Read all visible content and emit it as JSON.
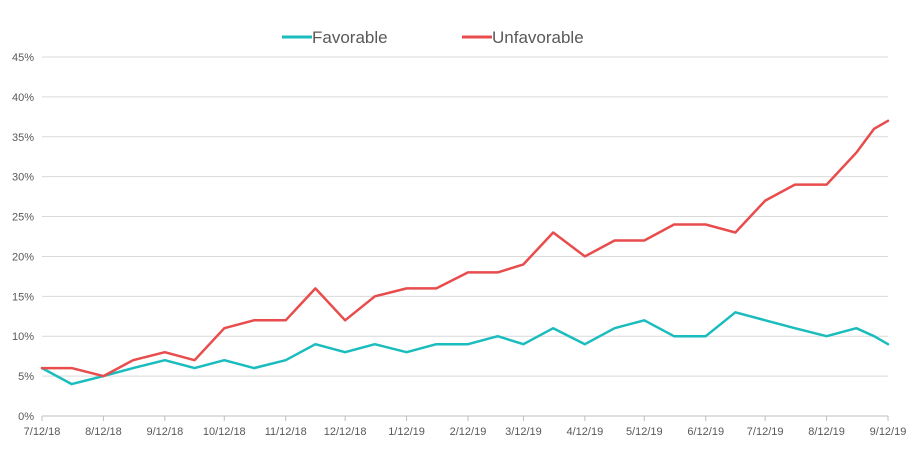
{
  "chart_data": {
    "type": "line",
    "title": "",
    "xlabel": "",
    "ylabel": "",
    "ylim": [
      0,
      45
    ],
    "yticks": [
      "0%",
      "5%",
      "10%",
      "15%",
      "20%",
      "25%",
      "30%",
      "35%",
      "40%",
      "45%"
    ],
    "xticks": [
      "7/12/18",
      "8/12/18",
      "9/12/18",
      "10/12/18",
      "11/12/18",
      "12/12/18",
      "1/12/19",
      "2/12/19",
      "3/12/19",
      "4/12/19",
      "5/12/19",
      "6/12/19",
      "7/12/19",
      "8/12/19",
      "9/12/19"
    ],
    "x": [
      "7/12/18",
      "7/27/18",
      "8/12/18",
      "8/27/18",
      "9/12/18",
      "9/27/18",
      "10/12/18",
      "10/27/18",
      "11/12/18",
      "11/27/18",
      "12/12/18",
      "12/27/18",
      "1/12/19",
      "1/27/19",
      "2/12/19",
      "2/27/19",
      "3/12/19",
      "3/27/19",
      "4/12/19",
      "4/27/19",
      "5/12/19",
      "5/27/19",
      "6/12/19",
      "6/27/19",
      "7/12/19",
      "7/27/19",
      "8/12/19",
      "8/27/19",
      "9/5/19",
      "9/12/19"
    ],
    "grid": true,
    "legend_position": "top",
    "series": [
      {
        "name": "Favorable",
        "color": "#1ABCBE",
        "values": [
          6,
          4,
          5,
          6,
          7,
          6,
          7,
          6,
          7,
          9,
          8,
          9,
          8,
          9,
          9,
          10,
          9,
          11,
          9,
          11,
          12,
          10,
          10,
          13,
          12,
          11,
          10,
          11,
          10,
          9
        ]
      },
      {
        "name": "Unfavorable",
        "color": "#E84C4C",
        "values": [
          6,
          6,
          5,
          7,
          8,
          7,
          11,
          12,
          12,
          16,
          12,
          15,
          16,
          16,
          18,
          18,
          19,
          23,
          20,
          22,
          22,
          24,
          24,
          23,
          27,
          29,
          29,
          33,
          36,
          37
        ]
      }
    ]
  }
}
